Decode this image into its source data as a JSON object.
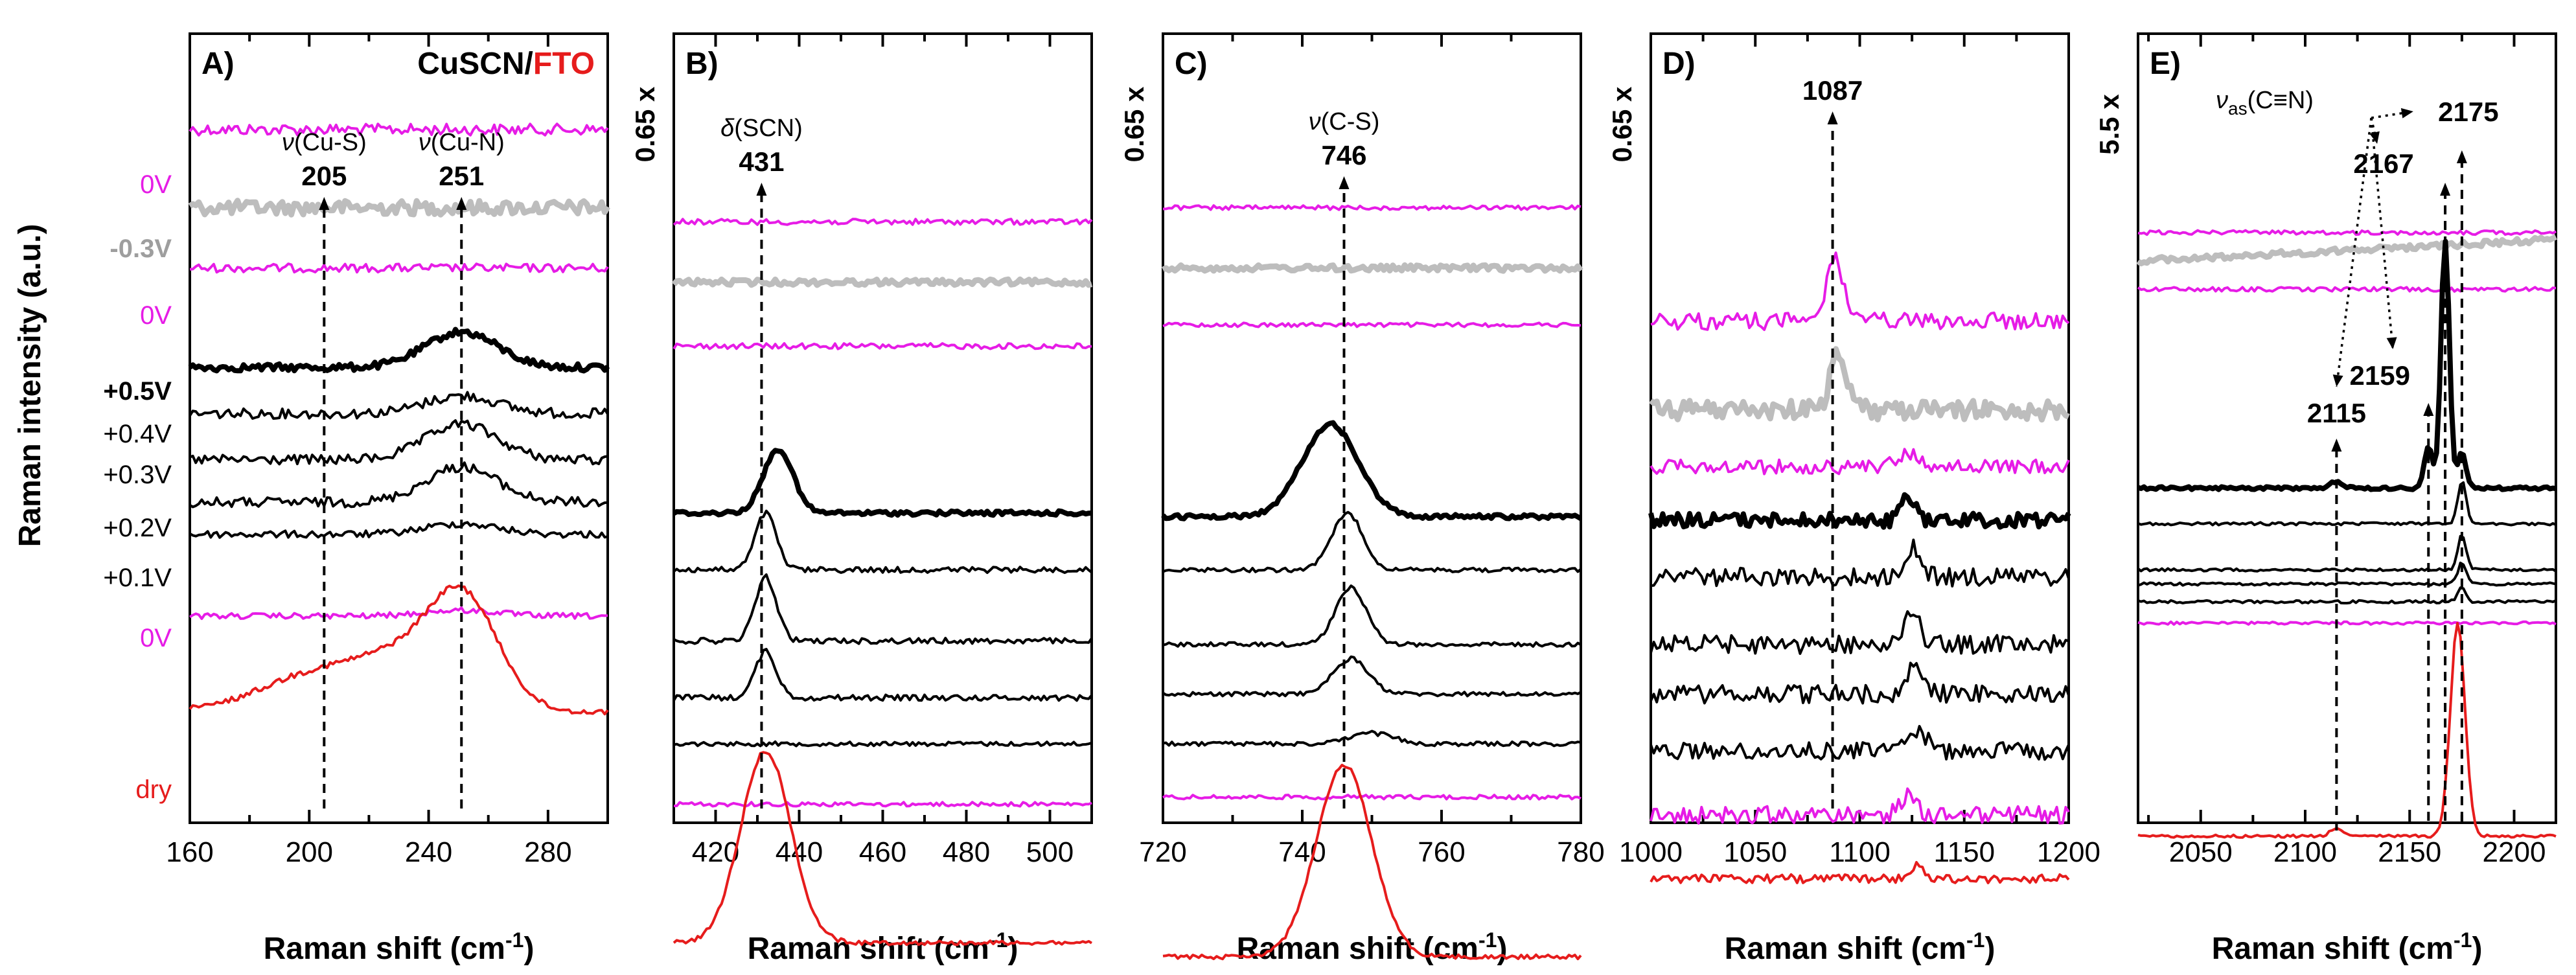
{
  "figure": {
    "ylabel": "Raman intensity (a.u.)",
    "xlabel_main": "Raman shift (cm",
    "xlabel_sup": "-1",
    "xlabel_close": ")"
  },
  "potentials": [
    {
      "label": "0V",
      "color": "#e61ce6",
      "weight": "normal"
    },
    {
      "label": "-0.3V",
      "color": "#9e9e9e",
      "weight": "bold"
    },
    {
      "label": "0V",
      "color": "#e61ce6",
      "weight": "normal"
    },
    {
      "label": "+0.5V",
      "color": "#000000",
      "weight": "bold"
    },
    {
      "label": "+0.4V",
      "color": "#000000",
      "weight": "normal"
    },
    {
      "label": "+0.3V",
      "color": "#000000",
      "weight": "normal"
    },
    {
      "label": "+0.2V",
      "color": "#000000",
      "weight": "normal"
    },
    {
      "label": "+0.1V",
      "color": "#000000",
      "weight": "normal"
    },
    {
      "label": "0V",
      "color": "#e61ce6",
      "weight": "normal"
    },
    {
      "label": "dry",
      "color": "#e61c1c",
      "weight": "normal"
    }
  ],
  "colors": {
    "magenta": "#e61ce6",
    "gray": "#bdbdbd",
    "black": "#000000",
    "red": "#e61c1c"
  },
  "chart_data": [
    {
      "type": "line",
      "panel": "A)",
      "title_black": "CuSCN/",
      "title_red": "FTO",
      "scale_factor": "",
      "xlim": [
        160,
        300
      ],
      "xticks": [
        160,
        200,
        240,
        280
      ],
      "minor_step": 20,
      "peaks": [
        {
          "mode_prefix": "ν",
          "mode": "(Cu-S)",
          "position": 205
        },
        {
          "mode_prefix": "ν",
          "mode": "(Cu-N)",
          "position": 251
        }
      ],
      "series": [
        {
          "name": "0V",
          "color": "magenta",
          "baseline": 0.135,
          "amp": 0,
          "noise": 0.008
        },
        {
          "name": "-0.3V",
          "color": "gray",
          "width": 9,
          "baseline": 0.245,
          "amp": 0,
          "noise": 0.01
        },
        {
          "name": "0V",
          "color": "magenta",
          "baseline": 0.33,
          "amp": 0,
          "noise": 0.006
        },
        {
          "name": "+0.5V",
          "color": "black",
          "width": 8,
          "baseline": 0.47,
          "amp": 0.05,
          "noise": 0.005
        },
        {
          "name": "+0.4V",
          "color": "black",
          "baseline": 0.535,
          "amp": 0.025,
          "noise": 0.007
        },
        {
          "name": "+0.3V",
          "color": "black",
          "baseline": 0.6,
          "amp": 0.05,
          "noise": 0.007
        },
        {
          "name": "+0.2V",
          "color": "black",
          "baseline": 0.66,
          "amp": 0.05,
          "noise": 0.007
        },
        {
          "name": "+0.1V",
          "color": "black",
          "baseline": 0.705,
          "amp": 0.015,
          "noise": 0.005
        },
        {
          "name": "0V",
          "color": "magenta",
          "baseline": 0.82,
          "amp": 0.008,
          "noise": 0.004
        },
        {
          "name": "dry",
          "color": "red",
          "baseline": 0.955,
          "amp": 0.165,
          "noise": 0.004,
          "shoulder": true
        }
      ]
    },
    {
      "type": "line",
      "panel": "B)",
      "scale_factor": "0.65 x",
      "xlim": [
        410,
        510
      ],
      "xticks": [
        420,
        440,
        460,
        480,
        500
      ],
      "minor_step": 10,
      "peaks": [
        {
          "mode_prefix": "δ",
          "mode": "(SCN)",
          "position": 431
        }
      ],
      "series": [
        {
          "name": "0V",
          "color": "magenta",
          "baseline": 0.265,
          "amp": 0,
          "noise": 0.004
        },
        {
          "name": "-0.3V",
          "color": "gray",
          "width": 9,
          "baseline": 0.35,
          "amp": 0,
          "noise": 0.004
        },
        {
          "name": "0V",
          "color": "magenta",
          "baseline": 0.44,
          "amp": 0,
          "noise": 0.004
        },
        {
          "name": "+0.5V",
          "color": "black",
          "width": 8,
          "baseline": 0.675,
          "amp": 0.09,
          "center": 435,
          "sigma": 3.5,
          "noise": 0.003
        },
        {
          "name": "+0.4V",
          "color": "black",
          "baseline": 0.755,
          "amp": 0.08,
          "center": 432,
          "sigma": 2.5,
          "noise": 0.004
        },
        {
          "name": "+0.3V",
          "color": "black",
          "baseline": 0.855,
          "amp": 0.09,
          "center": 432,
          "sigma": 2.5,
          "noise": 0.004
        },
        {
          "name": "+0.2V",
          "color": "black",
          "baseline": 0.935,
          "amp": 0.065,
          "center": 432,
          "sigma": 2.5,
          "noise": 0.004
        },
        {
          "name": "+0.1V",
          "color": "black",
          "baseline": 1.0,
          "amp": 0,
          "noise": 0.003
        },
        {
          "name": "0V",
          "color": "magenta",
          "baseline": 1.085,
          "amp": 0,
          "noise": 0.003
        },
        {
          "name": "dry",
          "color": "red",
          "baseline": 1.28,
          "amp": 0.27,
          "center": 432,
          "sigma": 6,
          "noise": 0.003
        }
      ]
    },
    {
      "type": "line",
      "panel": "C)",
      "scale_factor": "0.65 x",
      "xlim": [
        720,
        780
      ],
      "xticks": [
        720,
        740,
        760,
        780
      ],
      "minor_step": 10,
      "peaks": [
        {
          "mode_prefix": "ν",
          "mode": "(C-S)",
          "position": 746
        }
      ],
      "series": [
        {
          "name": "0V",
          "color": "magenta",
          "baseline": 0.245,
          "amp": 0,
          "noise": 0.003
        },
        {
          "name": "-0.3V",
          "color": "gray",
          "width": 9,
          "baseline": 0.33,
          "amp": 0,
          "noise": 0.004
        },
        {
          "name": "0V",
          "color": "magenta",
          "baseline": 0.41,
          "amp": 0,
          "noise": 0.003
        },
        {
          "name": "+0.5V",
          "color": "black",
          "width": 8,
          "baseline": 0.68,
          "amp": 0.13,
          "center": 744,
          "sigma": 4,
          "noise": 0.003
        },
        {
          "name": "+0.4V",
          "color": "black",
          "baseline": 0.755,
          "amp": 0.08,
          "center": 746.5,
          "sigma": 2.2,
          "noise": 0.003
        },
        {
          "name": "+0.3V",
          "color": "black",
          "baseline": 0.86,
          "amp": 0.08,
          "center": 747,
          "sigma": 2.2,
          "noise": 0.003
        },
        {
          "name": "+0.2V",
          "color": "black",
          "baseline": 0.93,
          "amp": 0.05,
          "center": 747,
          "sigma": 2.5,
          "noise": 0.003
        },
        {
          "name": "+0.1V",
          "color": "black",
          "baseline": 1.0,
          "amp": 0.015,
          "center": 750,
          "sigma": 3,
          "noise": 0.003
        },
        {
          "name": "0V",
          "color": "magenta",
          "baseline": 1.075,
          "amp": 0,
          "noise": 0.003
        },
        {
          "name": "dry",
          "color": "red",
          "baseline": 1.3,
          "amp": 0.27,
          "center": 746,
          "sigma": 4,
          "noise": 0.003
        }
      ]
    },
    {
      "type": "line",
      "panel": "D)",
      "scale_factor": "0.65 x",
      "xlim": [
        1000,
        1200
      ],
      "xticks": [
        1000,
        1050,
        1100,
        1150,
        1200
      ],
      "minor_step": 25,
      "peaks": [
        {
          "mode_prefix": "",
          "mode": "",
          "position": 1087
        }
      ],
      "series": [
        {
          "name": "0V",
          "color": "magenta",
          "baseline": 0.405,
          "amp": 0.09,
          "center": 1088,
          "sigma": 4,
          "noise": 0.012
        },
        {
          "name": "-0.3V",
          "color": "gray",
          "width": 9,
          "baseline": 0.53,
          "amp": 0.08,
          "center": 1090,
          "sigma": 4,
          "noise": 0.014
        },
        {
          "name": "0V",
          "color": "magenta",
          "baseline": 0.61,
          "amp": 0.02,
          "center": 1123,
          "sigma": 5,
          "noise": 0.01
        },
        {
          "name": "+0.5V",
          "color": "black",
          "width": 8,
          "baseline": 0.685,
          "amp": 0.035,
          "center": 1123,
          "sigma": 3,
          "noise": 0.01
        },
        {
          "name": "+0.4V",
          "color": "black",
          "baseline": 0.765,
          "amp": 0.04,
          "center": 1125,
          "sigma": 4,
          "noise": 0.013
        },
        {
          "name": "+0.3V",
          "color": "black",
          "baseline": 0.86,
          "amp": 0.04,
          "center": 1125,
          "sigma": 4,
          "noise": 0.013
        },
        {
          "name": "+0.2V",
          "color": "black",
          "baseline": 0.93,
          "amp": 0.035,
          "center": 1126,
          "sigma": 4,
          "noise": 0.013
        },
        {
          "name": "+0.1V",
          "color": "black",
          "baseline": 1.01,
          "amp": 0.03,
          "center": 1128,
          "sigma": 4,
          "noise": 0.012
        },
        {
          "name": "0V",
          "color": "magenta",
          "baseline": 1.1,
          "amp": 0.025,
          "center": 1123,
          "sigma": 4,
          "noise": 0.012
        },
        {
          "name": "dry",
          "color": "red",
          "baseline": 1.19,
          "amp": 0.02,
          "center": 1128,
          "sigma": 3,
          "noise": 0.006
        }
      ]
    },
    {
      "type": "line",
      "panel": "E)",
      "scale_factor": "5.5 x",
      "xlim": [
        2020,
        2220
      ],
      "xticks": [
        2050,
        2100,
        2150,
        2200
      ],
      "minor_step": 25,
      "mode_annotation": {
        "prefix": "ν",
        "sub": "as",
        "mode": "(C≡N)"
      },
      "peaks": [
        {
          "position": 2115
        },
        {
          "position": 2159
        },
        {
          "position": 2167
        },
        {
          "position": 2175
        }
      ],
      "series": [
        {
          "name": "0V",
          "color": "magenta",
          "baseline": 0.28,
          "amp": 0,
          "noise": 0.003
        },
        {
          "name": "-0.3V",
          "color": "gray",
          "width": 9,
          "baseline": 0.32,
          "amp": 0,
          "noise": 0.004,
          "slope": -0.03
        },
        {
          "name": "0V",
          "color": "magenta",
          "baseline": 0.36,
          "amp": 0,
          "noise": 0.003
        },
        {
          "name": "+0.5V",
          "color": "black",
          "width": 8,
          "baseline": 0.64,
          "amp": 0.35,
          "center": 2167,
          "sigma": 2,
          "noise": 0.002
        },
        {
          "name": "+0.4V",
          "color": "black",
          "baseline": 0.69,
          "amp": 0.06,
          "center": 2175,
          "sigma": 2,
          "noise": 0.002
        },
        {
          "name": "+0.3V",
          "color": "black",
          "baseline": 0.755,
          "amp": 0.05,
          "center": 2175,
          "sigma": 2,
          "noise": 0.002
        },
        {
          "name": "+0.2V",
          "color": "black",
          "baseline": 0.775,
          "amp": 0.03,
          "center": 2175,
          "sigma": 2,
          "noise": 0.002
        },
        {
          "name": "+0.1V",
          "color": "black",
          "baseline": 0.8,
          "amp": 0.02,
          "center": 2175,
          "sigma": 2,
          "noise": 0.002
        },
        {
          "name": "0V",
          "color": "magenta",
          "baseline": 0.83,
          "amp": 0,
          "noise": 0.002
        },
        {
          "name": "dry",
          "color": "red",
          "baseline": 1.13,
          "amp": 0.3,
          "center": 2173,
          "sigma": 3.5,
          "noise": 0.002
        }
      ]
    }
  ]
}
